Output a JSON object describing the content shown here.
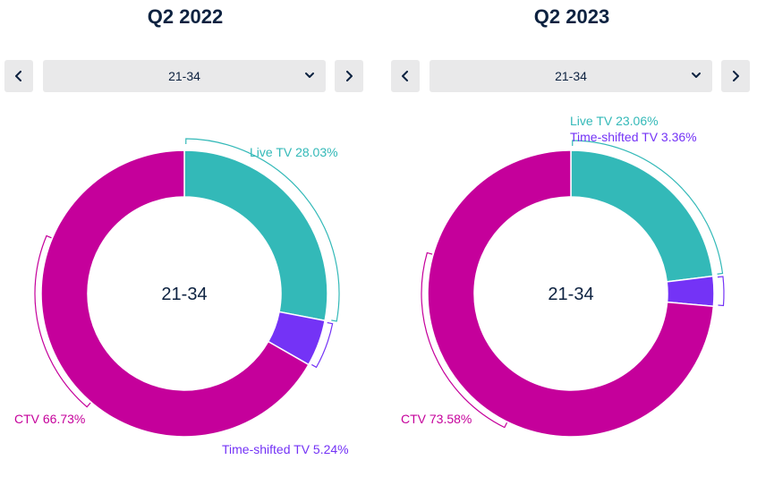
{
  "chart_data": [
    {
      "type": "pie",
      "title": "Q2 2022",
      "selector": {
        "value": "21-34"
      },
      "center_label": "21-34",
      "slices": [
        {
          "name": "Live TV",
          "value": 28.03,
          "label": "Live TV 28.03%",
          "color": "#33b9b8"
        },
        {
          "name": "Time-shifted TV",
          "value": 5.24,
          "label": "Time-shifted TV 5.24%",
          "color": "#7433f6"
        },
        {
          "name": "CTV",
          "value": 66.73,
          "label": "CTV 66.73%",
          "color": "#c5009b"
        }
      ]
    },
    {
      "type": "pie",
      "title": "Q2 2023",
      "selector": {
        "value": "21-34"
      },
      "center_label": "21-34",
      "slices": [
        {
          "name": "Live TV",
          "value": 23.06,
          "label": "Live TV 23.06%",
          "color": "#33b9b8"
        },
        {
          "name": "Time-shifted TV",
          "value": 3.36,
          "label": "Time-shifted TV 3.36%",
          "color": "#7433f6"
        },
        {
          "name": "CTV",
          "value": 73.58,
          "label": "CTV 73.58%",
          "color": "#c5009b"
        }
      ]
    }
  ],
  "icons": {
    "prev": "chevron-left-icon",
    "next": "chevron-right-icon",
    "dropdown": "chevron-down-icon"
  }
}
